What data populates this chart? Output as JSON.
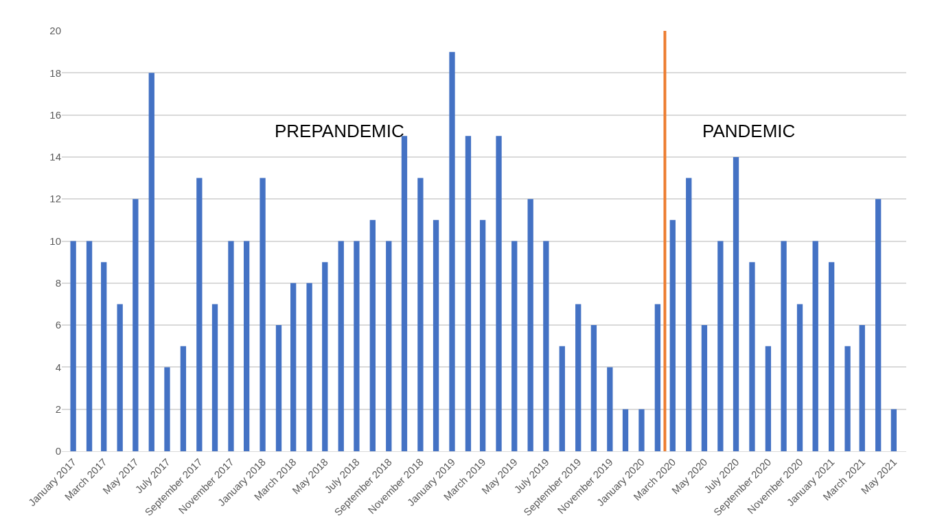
{
  "chart_data": {
    "type": "bar",
    "x": [
      "2017-01",
      "2017-02",
      "2017-03",
      "2017-04",
      "2017-05",
      "2017-06",
      "2017-07",
      "2017-08",
      "2017-09",
      "2017-10",
      "2017-11",
      "2017-12",
      "2018-01",
      "2018-02",
      "2018-03",
      "2018-04",
      "2018-05",
      "2018-06",
      "2018-07",
      "2018-08",
      "2018-09",
      "2018-10",
      "2018-11",
      "2018-12",
      "2019-01",
      "2019-02",
      "2019-03",
      "2019-04",
      "2019-05",
      "2019-06",
      "2019-07",
      "2019-08",
      "2019-09",
      "2019-10",
      "2019-11",
      "2019-12",
      "2020-01",
      "2020-02",
      "2020-03",
      "2020-04",
      "2020-05",
      "2020-06",
      "2020-07",
      "2020-08",
      "2020-09",
      "2020-10",
      "2020-11",
      "2020-12",
      "2021-01",
      "2021-02",
      "2021-03",
      "2021-04",
      "2021-05"
    ],
    "values": [
      10,
      10,
      9,
      7,
      12,
      18,
      4,
      5,
      13,
      7,
      10,
      10,
      13,
      6,
      8,
      8,
      9,
      10,
      10,
      11,
      10,
      15,
      13,
      11,
      19,
      15,
      11,
      15,
      10,
      12,
      10,
      5,
      7,
      6,
      4,
      2,
      2,
      7,
      11,
      13,
      6,
      10,
      14,
      9,
      5,
      10,
      7,
      10,
      9,
      5,
      6,
      12,
      2
    ],
    "color": "#4472c4",
    "xlim": [
      "2016-12-10",
      "2021-05-25"
    ],
    "xticks": [
      {
        "value": "2017-01",
        "label": "January 2017"
      },
      {
        "value": "2017-03",
        "label": "March 2017"
      },
      {
        "value": "2017-05",
        "label": "May 2017"
      },
      {
        "value": "2017-07",
        "label": "July 2017"
      },
      {
        "value": "2017-09",
        "label": "September 2017"
      },
      {
        "value": "2017-11",
        "label": "November 2017"
      },
      {
        "value": "2018-01",
        "label": "January 2018"
      },
      {
        "value": "2018-03",
        "label": "March 2018"
      },
      {
        "value": "2018-05",
        "label": "May 2018"
      },
      {
        "value": "2018-07",
        "label": "July 2018"
      },
      {
        "value": "2018-09",
        "label": "September 2018"
      },
      {
        "value": "2018-11",
        "label": "November 2018"
      },
      {
        "value": "2019-01",
        "label": "January 2019"
      },
      {
        "value": "2019-03",
        "label": "March 2019"
      },
      {
        "value": "2019-05",
        "label": "May 2019"
      },
      {
        "value": "2019-07",
        "label": "July 2019"
      },
      {
        "value": "2019-09",
        "label": "September 2019"
      },
      {
        "value": "2019-11",
        "label": "November 2019"
      },
      {
        "value": "2020-01",
        "label": "January 2020"
      },
      {
        "value": "2020-03",
        "label": "March 2020"
      },
      {
        "value": "2020-05",
        "label": "May 2020"
      },
      {
        "value": "2020-07",
        "label": "July 2020"
      },
      {
        "value": "2020-09",
        "label": "September 2020"
      },
      {
        "value": "2020-11",
        "label": "November 2020"
      },
      {
        "value": "2021-01",
        "label": "January 2021"
      },
      {
        "value": "2021-03",
        "label": "March 2021"
      },
      {
        "value": "2021-05",
        "label": "May 2021"
      }
    ],
    "ylim": [
      0,
      20
    ],
    "yticks": [
      0,
      2,
      4,
      6,
      8,
      10,
      12,
      14,
      16,
      18,
      20
    ],
    "grid": "y",
    "ref_lines": [
      {
        "axis": "x",
        "value": "2020-02-15",
        "color": "#ed7d31"
      }
    ],
    "annotations": [
      "PREPANDEMIC",
      "PANDEMIC"
    ]
  }
}
